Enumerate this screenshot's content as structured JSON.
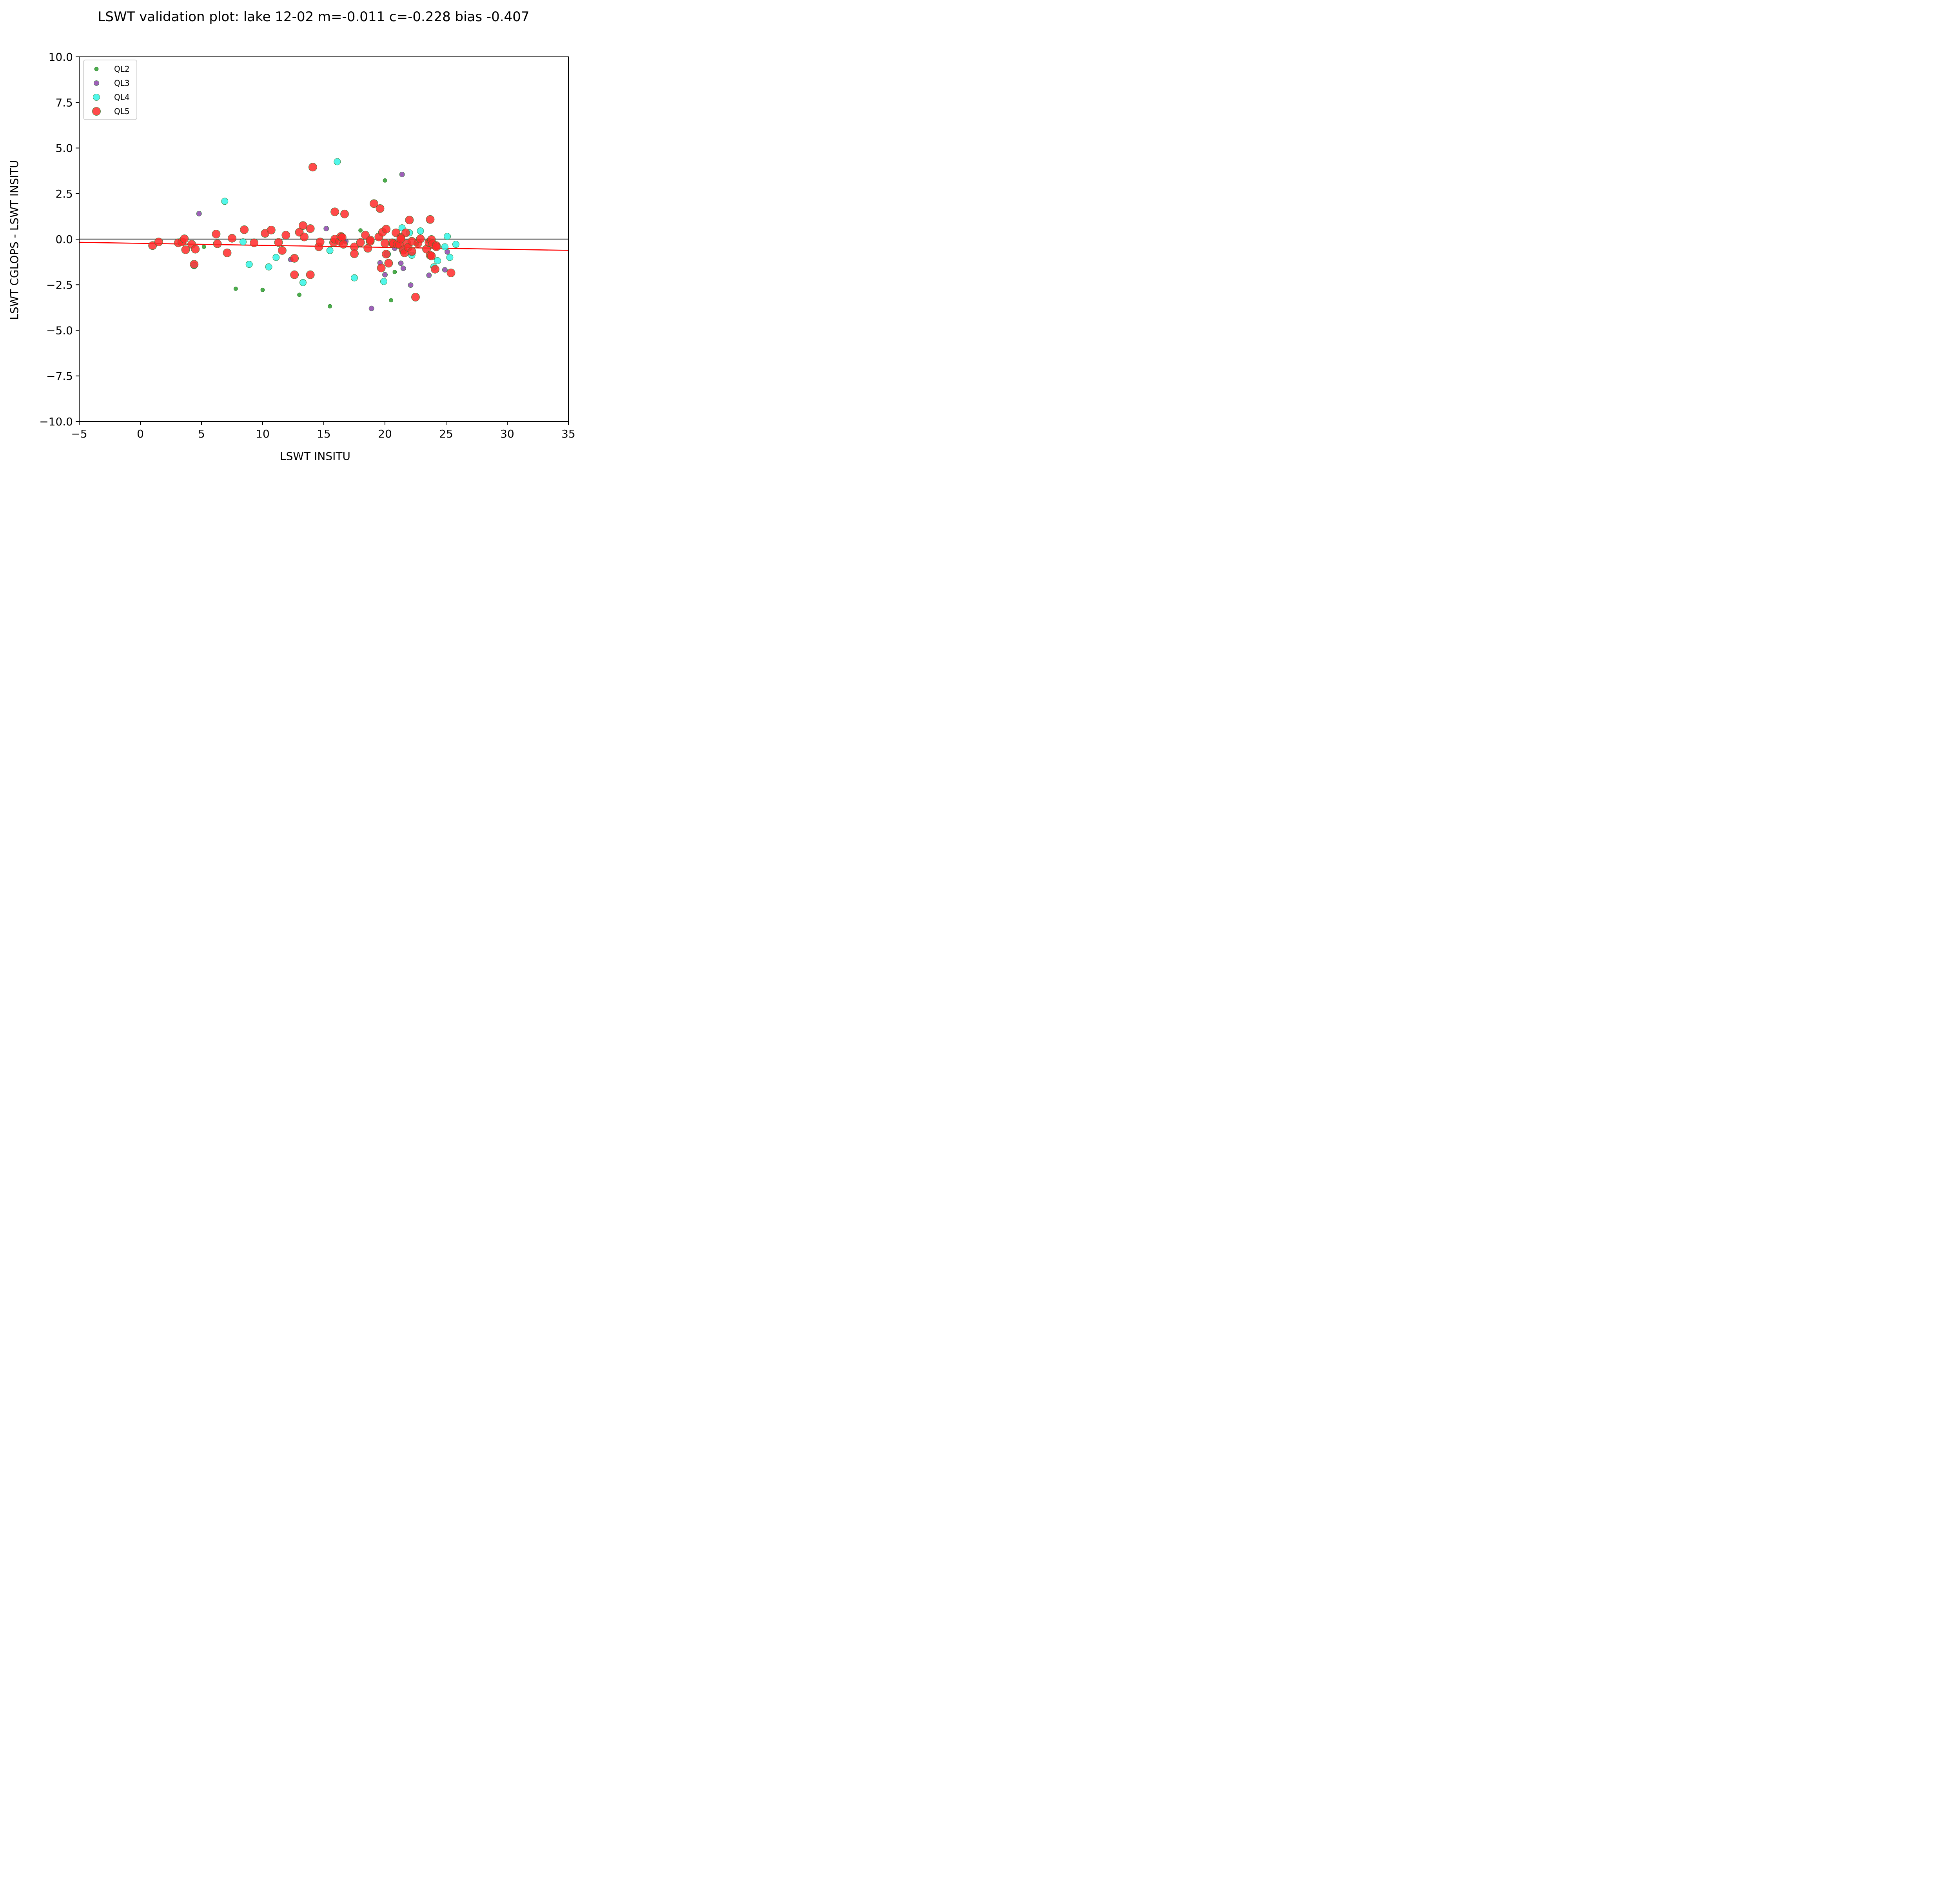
{
  "chart_data": {
    "type": "scatter",
    "title": "LSWT validation plot: lake 12-02 m=-0.011 c=-0.228 bias -0.407",
    "xlabel": "LSWT INSITU",
    "ylabel": "LSWT CGLOPS - LSWT INSITU",
    "xlim": [
      -5,
      35
    ],
    "ylim": [
      -10,
      10
    ],
    "x_ticks": [
      "−5",
      "0",
      "5",
      "10",
      "15",
      "20",
      "25",
      "30",
      "35"
    ],
    "y_ticks": [
      "−10.0",
      "−7.5",
      "−5.0",
      "−2.5",
      "0.0",
      "2.5",
      "5.0",
      "7.5",
      "10.0"
    ],
    "x_tick_values": [
      -5,
      0,
      5,
      10,
      15,
      20,
      25,
      30,
      35
    ],
    "y_tick_values": [
      -10,
      -7.5,
      -5,
      -2.5,
      0,
      2.5,
      5,
      7.5,
      10
    ],
    "grid": false,
    "legend_position": "top-left",
    "zero_line": {
      "y": 0,
      "color": "#666666"
    },
    "fit_line": {
      "slope": -0.011,
      "intercept": -0.228,
      "color": "#ff0000"
    },
    "series": [
      {
        "name": "QL2",
        "color": "#2ca02c",
        "points": [
          [
            5.2,
            -0.42
          ],
          [
            7.8,
            -2.72
          ],
          [
            10.0,
            -2.78
          ],
          [
            13.0,
            -3.05
          ],
          [
            15.5,
            -3.68
          ],
          [
            18.0,
            0.48
          ],
          [
            20.0,
            3.22
          ],
          [
            20.5,
            -3.35
          ],
          [
            20.8,
            -1.8
          ],
          [
            21.2,
            -0.22
          ],
          [
            22.6,
            -0.28
          ],
          [
            23.5,
            -0.12
          ],
          [
            16.7,
            -0.1
          ]
        ]
      },
      {
        "name": "QL3",
        "color": "#8e44ad",
        "points": [
          [
            4.8,
            1.4
          ],
          [
            12.3,
            -1.12
          ],
          [
            15.2,
            0.58
          ],
          [
            16.8,
            -0.12
          ],
          [
            18.9,
            -3.8
          ],
          [
            19.6,
            -1.3
          ],
          [
            20.0,
            -1.95
          ],
          [
            20.8,
            -0.5
          ],
          [
            21.3,
            -1.32
          ],
          [
            21.4,
            3.55
          ],
          [
            21.5,
            -1.6
          ],
          [
            22.1,
            -2.52
          ],
          [
            23.6,
            -1.98
          ],
          [
            24.9,
            -1.68
          ],
          [
            25.1,
            -0.7
          ]
        ]
      },
      {
        "name": "QL4",
        "color": "#33f5e6",
        "points": [
          [
            4.4,
            -1.45
          ],
          [
            6.9,
            2.08
          ],
          [
            8.4,
            -0.15
          ],
          [
            8.9,
            -1.38
          ],
          [
            10.5,
            -1.52
          ],
          [
            11.1,
            -1.0
          ],
          [
            13.3,
            -2.38
          ],
          [
            15.5,
            -0.62
          ],
          [
            16.1,
            4.25
          ],
          [
            17.5,
            -2.12
          ],
          [
            19.9,
            -2.32
          ],
          [
            20.2,
            -0.82
          ],
          [
            21.4,
            0.62
          ],
          [
            22.0,
            0.35
          ],
          [
            22.2,
            -0.88
          ],
          [
            22.9,
            0.45
          ],
          [
            24.0,
            -1.52
          ],
          [
            24.3,
            -1.18
          ],
          [
            24.9,
            -0.42
          ],
          [
            25.1,
            0.15
          ],
          [
            25.3,
            -1.0
          ],
          [
            25.8,
            -0.28
          ],
          [
            21.4,
            -0.52
          ]
        ]
      },
      {
        "name": "QL5",
        "color": "#ff2a2a",
        "points": [
          [
            1.0,
            -0.35
          ],
          [
            1.5,
            -0.15
          ],
          [
            3.1,
            -0.2
          ],
          [
            3.4,
            -0.15
          ],
          [
            3.6,
            0.02
          ],
          [
            3.7,
            -0.58
          ],
          [
            4.2,
            -0.28
          ],
          [
            4.5,
            -0.55
          ],
          [
            4.4,
            -1.38
          ],
          [
            6.2,
            0.28
          ],
          [
            6.3,
            -0.25
          ],
          [
            7.1,
            -0.75
          ],
          [
            7.5,
            0.05
          ],
          [
            8.5,
            0.52
          ],
          [
            9.3,
            -0.2
          ],
          [
            10.2,
            0.32
          ],
          [
            10.7,
            0.5
          ],
          [
            11.3,
            -0.18
          ],
          [
            11.6,
            -0.62
          ],
          [
            11.9,
            0.22
          ],
          [
            12.6,
            -1.05
          ],
          [
            12.6,
            -1.95
          ],
          [
            13.0,
            0.38
          ],
          [
            13.3,
            0.75
          ],
          [
            13.4,
            0.12
          ],
          [
            13.9,
            0.58
          ],
          [
            14.1,
            3.95
          ],
          [
            13.9,
            -1.95
          ],
          [
            14.6,
            -0.42
          ],
          [
            14.7,
            -0.15
          ],
          [
            15.8,
            -0.18
          ],
          [
            15.9,
            1.5
          ],
          [
            15.9,
            0.0
          ],
          [
            16.3,
            -0.12
          ],
          [
            16.4,
            0.15
          ],
          [
            16.5,
            0.1
          ],
          [
            16.6,
            -0.28
          ],
          [
            16.7,
            1.38
          ],
          [
            17.5,
            -0.42
          ],
          [
            17.5,
            -0.8
          ],
          [
            18.0,
            -0.18
          ],
          [
            18.4,
            0.22
          ],
          [
            18.6,
            -0.5
          ],
          [
            18.8,
            -0.12
          ],
          [
            18.8,
            -0.05
          ],
          [
            19.1,
            1.95
          ],
          [
            19.5,
            0.12
          ],
          [
            19.6,
            1.68
          ],
          [
            19.7,
            -1.58
          ],
          [
            19.8,
            0.38
          ],
          [
            20.0,
            -0.22
          ],
          [
            20.1,
            -0.82
          ],
          [
            20.1,
            0.55
          ],
          [
            20.3,
            -1.32
          ],
          [
            20.6,
            -0.2
          ],
          [
            20.7,
            -0.25
          ],
          [
            20.9,
            0.35
          ],
          [
            21.0,
            -0.28
          ],
          [
            21.2,
            -0.3
          ],
          [
            21.3,
            0.1
          ],
          [
            21.5,
            -0.6
          ],
          [
            21.6,
            -0.75
          ],
          [
            21.7,
            0.35
          ],
          [
            21.8,
            -0.25
          ],
          [
            21.9,
            -0.45
          ],
          [
            22.0,
            1.05
          ],
          [
            22.2,
            -0.12
          ],
          [
            22.2,
            -0.68
          ],
          [
            22.5,
            -3.18
          ],
          [
            22.7,
            -0.22
          ],
          [
            22.9,
            0.02
          ],
          [
            23.4,
            -0.55
          ],
          [
            23.6,
            -0.18
          ],
          [
            23.7,
            -0.88
          ],
          [
            23.7,
            1.08
          ],
          [
            23.8,
            -0.02
          ],
          [
            23.8,
            -0.92
          ],
          [
            23.9,
            -0.25
          ],
          [
            24.1,
            -1.65
          ],
          [
            24.2,
            -0.35
          ],
          [
            24.2,
            -0.42
          ],
          [
            25.4,
            -1.85
          ],
          [
            21.3,
            0.02
          ]
        ]
      }
    ]
  }
}
